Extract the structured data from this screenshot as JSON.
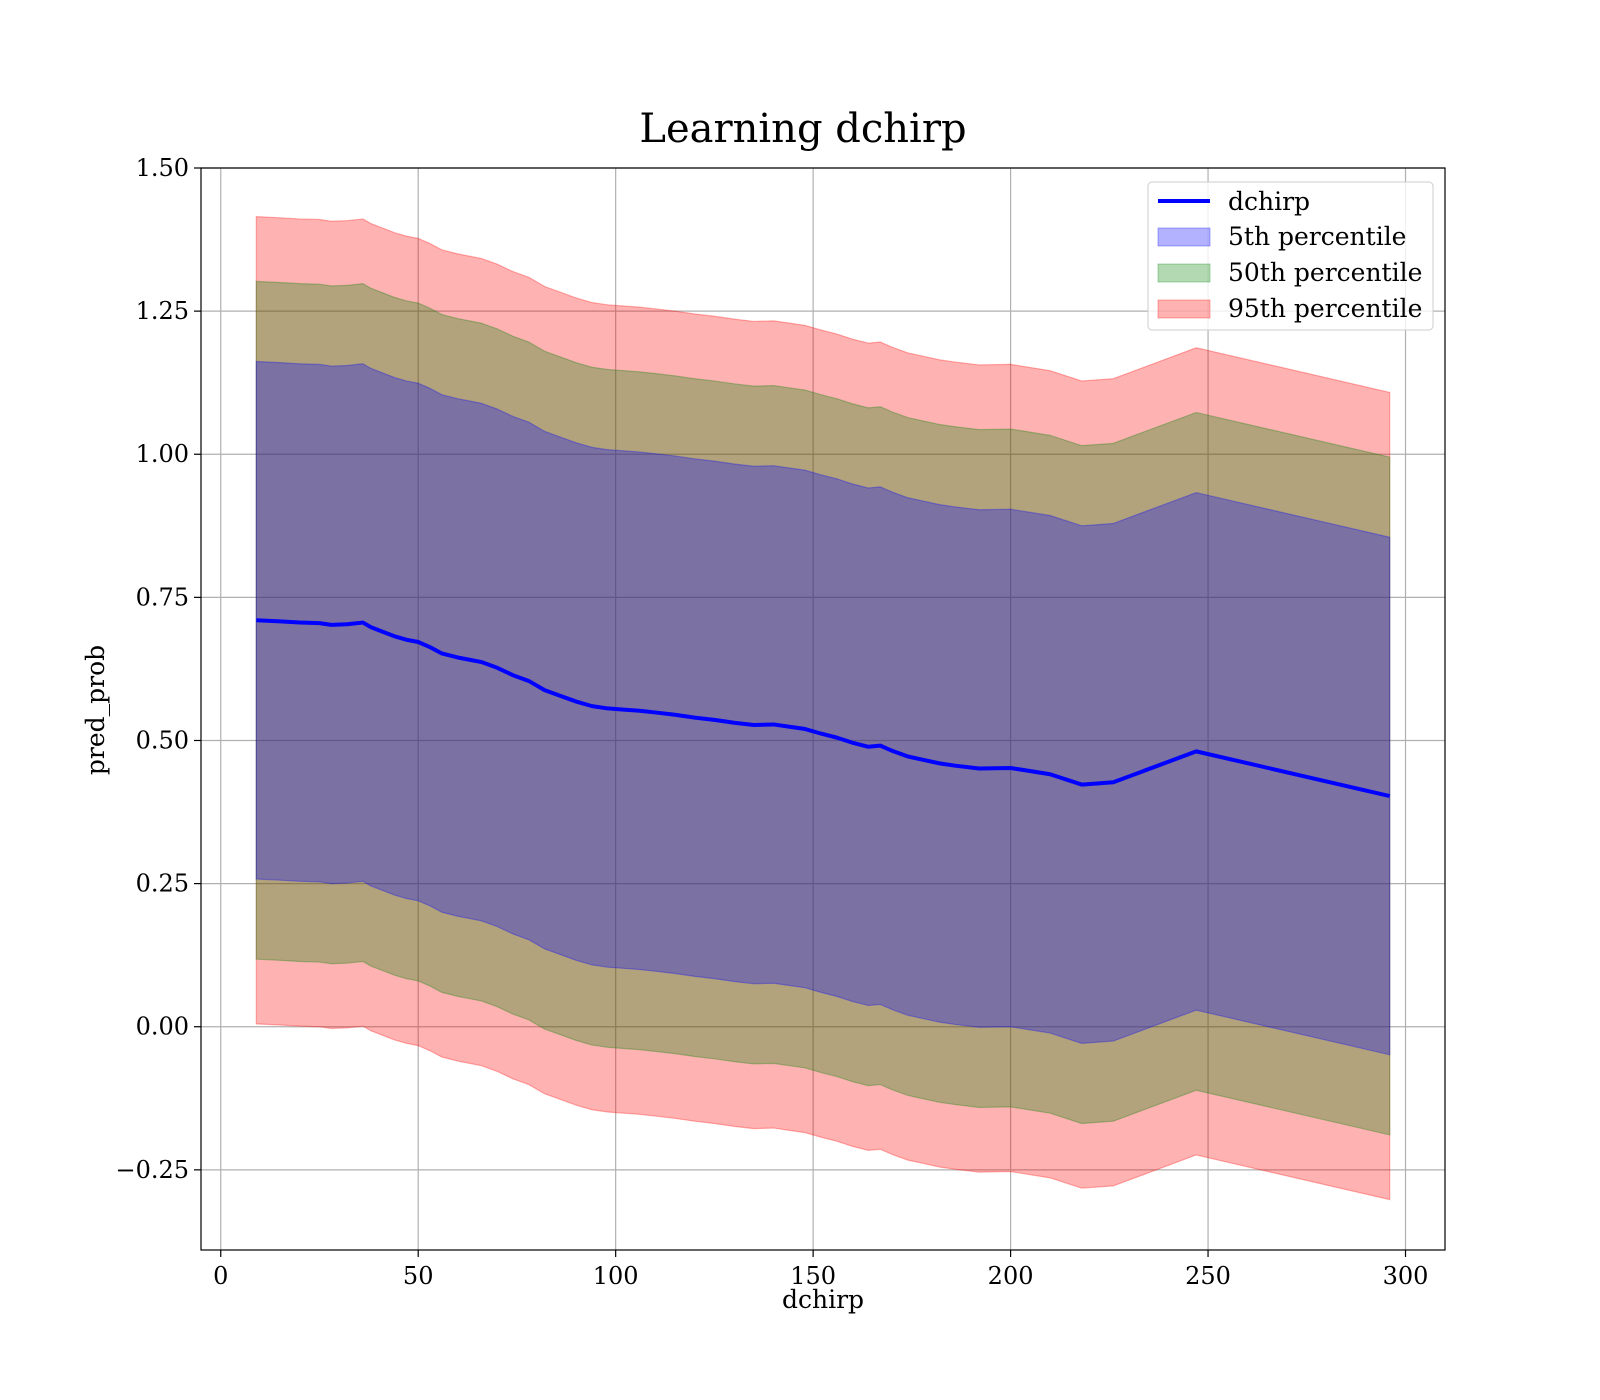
{
  "chart_data": {
    "type": "area",
    "title": "Learning dchirp",
    "xlabel": "dchirp",
    "ylabel": "pred_prob",
    "xlim": [
      -5,
      310
    ],
    "ylim": [
      -0.39,
      1.5
    ],
    "x_ticks": [
      0,
      50,
      100,
      150,
      200,
      250,
      300
    ],
    "y_ticks": [
      -0.25,
      0.0,
      0.25,
      0.5,
      0.75,
      1.0,
      1.25,
      1.5
    ],
    "x_tick_labels": [
      "0",
      "50",
      "100",
      "150",
      "200",
      "250",
      "300"
    ],
    "y_tick_labels": [
      "−0.25",
      "0.00",
      "0.25",
      "0.50",
      "0.75",
      "1.00",
      "1.25",
      "1.50"
    ],
    "grid": true,
    "legend_position": "top-right",
    "x": [
      9,
      15,
      20,
      25,
      28,
      32,
      36,
      38,
      41,
      44,
      47,
      50,
      53,
      56,
      60,
      63,
      66,
      70,
      74,
      78,
      82,
      86,
      90,
      94,
      98,
      102,
      106,
      110,
      115,
      120,
      125,
      130,
      135,
      140,
      144,
      148,
      152,
      156,
      160,
      164,
      167,
      170,
      174,
      178,
      182,
      186,
      192,
      200,
      210,
      218,
      226,
      247,
      296
    ],
    "series": [
      {
        "name": "dchirp",
        "kind": "line",
        "color": "#0000ff",
        "values": [
          0.71,
          0.708,
          0.706,
          0.705,
          0.702,
          0.703,
          0.706,
          0.698,
          0.69,
          0.682,
          0.676,
          0.672,
          0.663,
          0.652,
          0.645,
          0.641,
          0.637,
          0.627,
          0.614,
          0.604,
          0.588,
          0.578,
          0.568,
          0.56,
          0.556,
          0.554,
          0.552,
          0.549,
          0.545,
          0.54,
          0.536,
          0.531,
          0.527,
          0.528,
          0.524,
          0.52,
          0.512,
          0.505,
          0.496,
          0.489,
          0.491,
          0.482,
          0.472,
          0.466,
          0.46,
          0.456,
          0.451,
          0.452,
          0.441,
          0.423,
          0.427,
          0.481,
          0.403
        ]
      },
      {
        "name": "5th percentile",
        "kind": "band",
        "color": "#0000ff",
        "offset": 0.452
      },
      {
        "name": "50th percentile",
        "kind": "band",
        "color": "#008000",
        "offset": 0.592
      },
      {
        "name": "95th percentile",
        "kind": "band",
        "color": "#ff0000",
        "offset": 0.705
      }
    ]
  },
  "legend": {
    "items": [
      {
        "label": "dchirp",
        "color": "#0000ff",
        "type": "line"
      },
      {
        "label": "5th percentile",
        "color": "#0000ff",
        "type": "patch"
      },
      {
        "label": "50th percentile",
        "color": "#008000",
        "type": "patch"
      },
      {
        "label": "95th percentile",
        "color": "#ff0000",
        "type": "patch"
      }
    ]
  }
}
